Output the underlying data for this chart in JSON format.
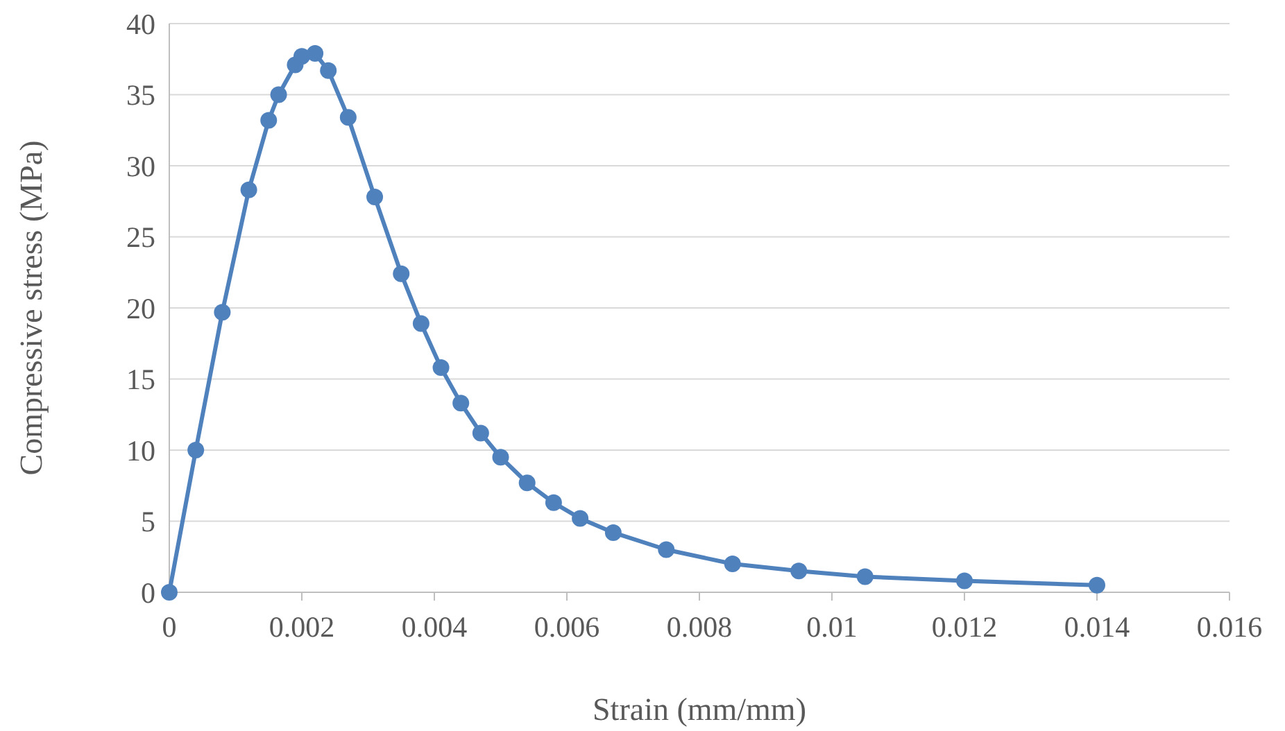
{
  "chart_data": {
    "type": "line",
    "xlabel": "Strain (mm/mm)",
    "ylabel": "Compressive stress (MPa)",
    "xlim": [
      0,
      0.016
    ],
    "xticks": [
      0,
      0.002,
      0.004,
      0.006,
      0.008,
      0.01,
      0.012,
      0.014,
      0.016
    ],
    "ylim": [
      0,
      40
    ],
    "yticks": [
      0,
      5,
      10,
      15,
      20,
      25,
      30,
      35,
      40
    ],
    "grid": "y",
    "marker": "circle",
    "line_style": "solid",
    "series": [
      {
        "color": "#4f81bd",
        "x": [
          0,
          0.0004,
          0.0008,
          0.0012,
          0.0015,
          0.00165,
          0.0019,
          0.002,
          0.0022,
          0.0024,
          0.0027,
          0.0031,
          0.0035,
          0.0038,
          0.0041,
          0.0044,
          0.0047,
          0.005,
          0.0054,
          0.0058,
          0.0062,
          0.0067,
          0.0075,
          0.0085,
          0.0095,
          0.0105,
          0.012,
          0.014
        ],
        "values": [
          0,
          10.0,
          19.7,
          28.3,
          33.2,
          35.0,
          37.1,
          37.7,
          37.9,
          36.7,
          33.4,
          27.8,
          22.4,
          18.9,
          15.8,
          13.3,
          11.2,
          9.5,
          7.7,
          6.3,
          5.2,
          4.2,
          3.0,
          2.0,
          1.5,
          1.1,
          0.8,
          0.5
        ]
      }
    ]
  }
}
